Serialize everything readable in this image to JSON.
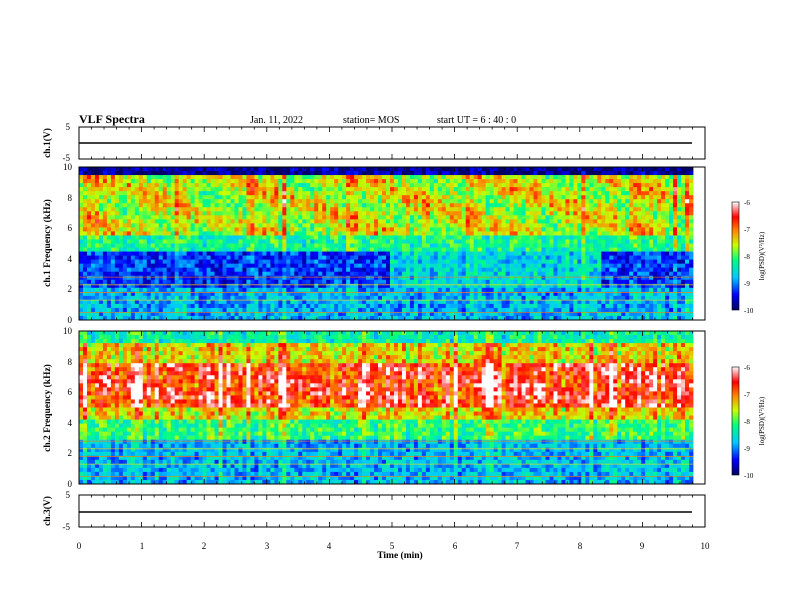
{
  "header": {
    "title": "VLF Spectra",
    "date": "Jan. 11, 2022",
    "station": "station= MOS",
    "start": "start  UT =  6 : 40 : 0"
  },
  "chart_data": [
    {
      "type": "line",
      "panel": "ch1-waveform",
      "ylabel": "ch.1(V)",
      "ylim": [
        -5,
        5
      ],
      "ytick_labels": [
        "5",
        "-5"
      ],
      "x": [
        0,
        1,
        2,
        3,
        4,
        5,
        6,
        7,
        8,
        9,
        9.85
      ],
      "series": [
        {
          "values": [
            0,
            0,
            0,
            0,
            0,
            0,
            0,
            0,
            0,
            0,
            0
          ]
        }
      ]
    },
    {
      "type": "heatmap",
      "panel": "ch1-spectrogram",
      "ylabel": "ch.1 Frequency (kHz)",
      "ylim": [
        0,
        10
      ],
      "ytick_labels": [
        "0",
        "2",
        "4",
        "6",
        "8",
        "10"
      ],
      "xlim": [
        0,
        10
      ],
      "colorbar": {
        "label": "log(PSD)(V²/Hz)",
        "range": [
          -10,
          -6
        ],
        "tick_labels": [
          "-6",
          "-7",
          "-8",
          "-9",
          "-10"
        ],
        "colors": [
          "#000060",
          "#0000ff",
          "#00c8ff",
          "#00ff80",
          "#c8ff00",
          "#ff8000",
          "#ff0000",
          "#ffffff"
        ]
      },
      "description_values": {
        "strong_band_kHz": [
          5,
          9.5
        ],
        "background_level": -9.5,
        "peak_level": -6.5
      }
    },
    {
      "type": "heatmap",
      "panel": "ch2-spectrogram",
      "ylabel": "ch.2 Frequency (kHz)",
      "ylim": [
        0,
        10
      ],
      "ytick_labels": [
        "0",
        "2",
        "4",
        "6",
        "8",
        "10"
      ],
      "xlim": [
        0,
        10
      ],
      "colorbar": {
        "label": "log(PSD)(V²/Hz)",
        "range": [
          -10,
          -6
        ],
        "tick_labels": [
          "-6",
          "-7",
          "-8",
          "-9",
          "-10"
        ],
        "colors": [
          "#000060",
          "#0000ff",
          "#00c8ff",
          "#00ff80",
          "#c8ff00",
          "#ff8000",
          "#ff0000",
          "#ffffff"
        ]
      },
      "description_values": {
        "strong_band_kHz": [
          4.5,
          8.5
        ],
        "background_level": -9.0,
        "peak_level": -6.2
      }
    },
    {
      "type": "line",
      "panel": "ch3-waveform",
      "ylabel": "ch.3(V)",
      "ylim": [
        -5,
        5
      ],
      "ytick_labels": [
        "5",
        "-5"
      ],
      "x": [
        0,
        1,
        2,
        3,
        4,
        5,
        6,
        7,
        8,
        9,
        9.85
      ],
      "series": [
        {
          "values": [
            0,
            0,
            0,
            0,
            0,
            0,
            0,
            0,
            0,
            0,
            0
          ]
        }
      ]
    }
  ],
  "xaxis": {
    "label": "Time (min)",
    "xlim": [
      0,
      10
    ],
    "tick_labels": [
      "0",
      "1",
      "2",
      "3",
      "4",
      "5",
      "6",
      "7",
      "8",
      "9",
      "10"
    ]
  }
}
